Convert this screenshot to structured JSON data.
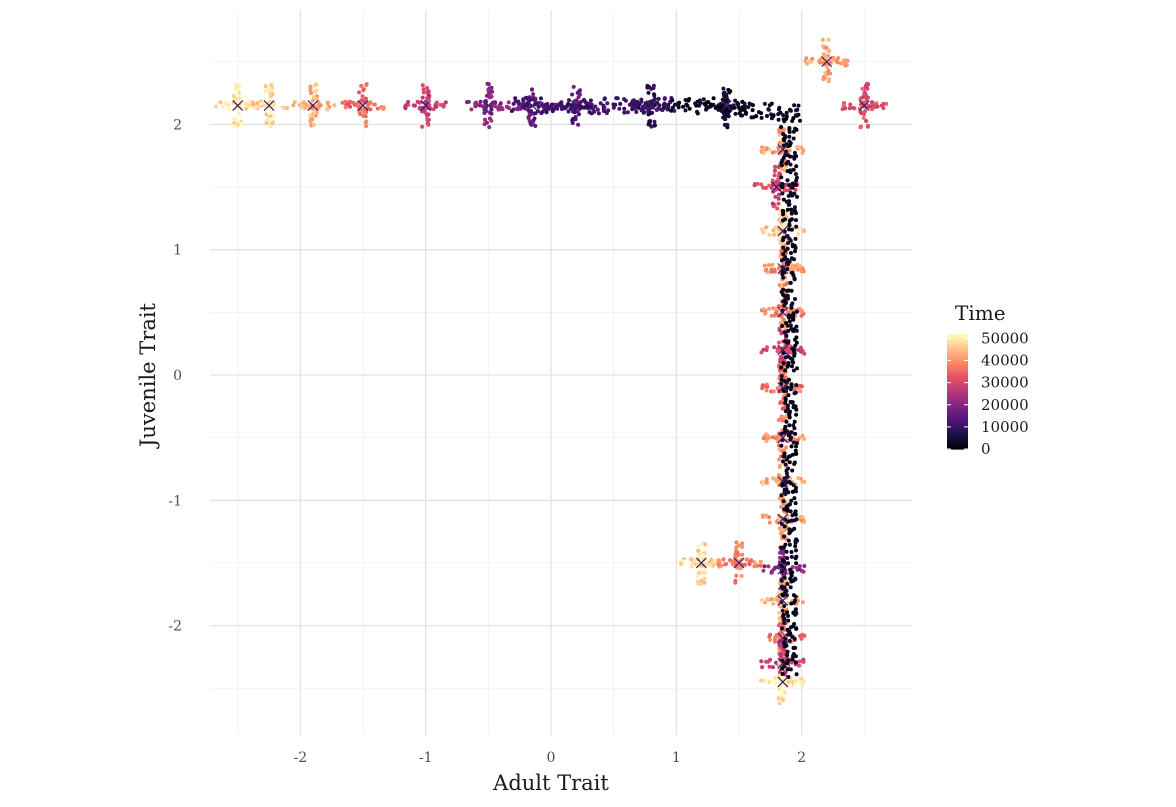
{
  "chart_data": {
    "type": "scatter",
    "title": "",
    "xlabel": "Adult Trait",
    "ylabel": "Juvenile Trait",
    "xlim": [
      -2.5,
      2.5
    ],
    "ylim": [
      -2.5,
      2.5
    ],
    "x_ticks": [
      -2,
      -1,
      0,
      1,
      2
    ],
    "y_ticks": [
      -2,
      -1,
      0,
      1,
      2
    ],
    "x_tick_labels": [
      "-2",
      "-1",
      "0",
      "1",
      "2"
    ],
    "y_tick_labels": [
      "-2",
      "-1",
      "0",
      "1",
      "2"
    ],
    "grid": true,
    "legend": {
      "title": "Time",
      "position": "right",
      "type": "colorbar",
      "breaks": [
        0,
        10000,
        20000,
        30000,
        40000,
        50000
      ],
      "labels": [
        "0",
        "10000",
        "20000",
        "30000",
        "40000",
        "50000"
      ],
      "range": [
        0,
        52000
      ],
      "palette": [
        "#000004",
        "#1c1044",
        "#4f127b",
        "#812581",
        "#b5367a",
        "#e55064",
        "#fb8761",
        "#fec287",
        "#fcfdbf"
      ]
    },
    "series": [
      {
        "type": "branch_points",
        "points": [
          {
            "x": -2.5,
            "y": 2.15,
            "t": 50000
          },
          {
            "x": -2.25,
            "y": 2.15,
            "t": 48000
          },
          {
            "x": -1.9,
            "y": 2.15,
            "t": 44000
          },
          {
            "x": -1.5,
            "y": 2.15,
            "t": 36000
          },
          {
            "x": -1.0,
            "y": 2.15,
            "t": 28000
          },
          {
            "x": -0.5,
            "y": 2.15,
            "t": 20000
          },
          {
            "x": -0.15,
            "y": 2.15,
            "t": 15000
          },
          {
            "x": 0.2,
            "y": 2.15,
            "t": 14000
          },
          {
            "x": 0.8,
            "y": 2.15,
            "t": 8000
          },
          {
            "x": 1.4,
            "y": 2.15,
            "t": 3000
          },
          {
            "x": 2.2,
            "y": 2.5,
            "t": 42000
          },
          {
            "x": 2.5,
            "y": 2.15,
            "t": 32000
          },
          {
            "x": 1.85,
            "y": 1.8,
            "t": 42000
          },
          {
            "x": 1.8,
            "y": 1.5,
            "t": 30000
          },
          {
            "x": 1.85,
            "y": 1.15,
            "t": 46000
          },
          {
            "x": 1.85,
            "y": 0.85,
            "t": 40000
          },
          {
            "x": 1.85,
            "y": 0.5,
            "t": 38000
          },
          {
            "x": 1.85,
            "y": 0.2,
            "t": 30000
          },
          {
            "x": 1.85,
            "y": -0.1,
            "t": 36000
          },
          {
            "x": 1.85,
            "y": -0.5,
            "t": 40000
          },
          {
            "x": 1.85,
            "y": -0.85,
            "t": 44000
          },
          {
            "x": 1.85,
            "y": -1.15,
            "t": 42000
          },
          {
            "x": 1.85,
            "y": -1.55,
            "t": 20000
          },
          {
            "x": 1.85,
            "y": -1.8,
            "t": 44000
          },
          {
            "x": 1.85,
            "y": -2.1,
            "t": 36000
          },
          {
            "x": 1.85,
            "y": -2.3,
            "t": 28000
          },
          {
            "x": 1.85,
            "y": -2.45,
            "t": 50000
          },
          {
            "x": 1.2,
            "y": -1.5,
            "t": 48000
          },
          {
            "x": 1.5,
            "y": -1.5,
            "t": 38000
          }
        ]
      }
    ]
  }
}
